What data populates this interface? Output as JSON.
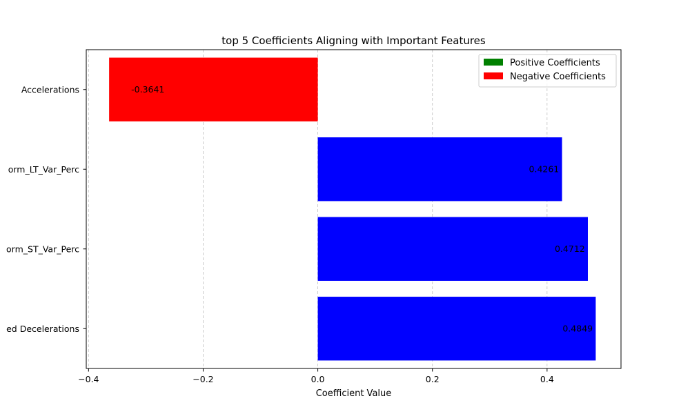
{
  "chart_data": {
    "type": "bar",
    "orientation": "horizontal",
    "title": "top 5 Coefficients Aligning with Important Features",
    "xlabel": "Coefficient Value",
    "ylabel": "",
    "xlim": [
      -0.404,
      0.529
    ],
    "x_ticks": [
      -0.4,
      -0.2,
      0.0,
      0.2,
      0.4
    ],
    "x_tick_labels": [
      "−0.4",
      "−0.2",
      "0.0",
      "0.2",
      "0.4"
    ],
    "grid": "x-axis dashed",
    "categories": [
      "Accelerations",
      "Norm_LT_Var_Perc",
      "Norm_ST_Var_Perc",
      "Prolonged Decelerations"
    ],
    "category_labels_visible": [
      "Accelerations",
      "orm_LT_Var_Perc",
      "orm_ST_Var_Perc",
      "ed Decelerations"
    ],
    "values": [
      -0.3641,
      0.4261,
      0.4712,
      0.4849
    ],
    "value_labels": [
      "-0.3641",
      "0.4261",
      "0.4712",
      "0.4849"
    ],
    "bar_colors": [
      "#ff0000",
      "#0000ff",
      "#0000ff",
      "#0000ff"
    ],
    "legend": {
      "placement": "top-right",
      "entries": [
        {
          "label": "Positive Coefficients",
          "color": "#008000"
        },
        {
          "label": "Negative Coefficients",
          "color": "#ff0000"
        }
      ]
    }
  }
}
